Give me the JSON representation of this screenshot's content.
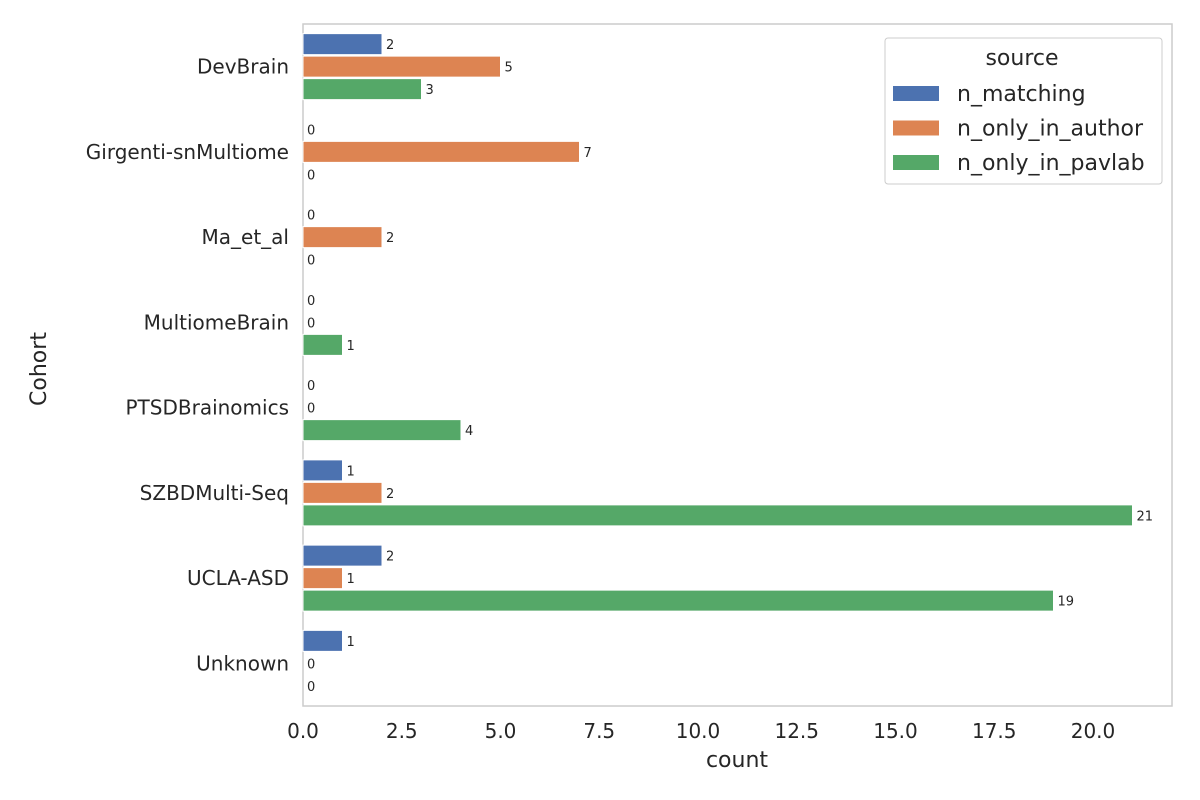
{
  "chart_data": {
    "type": "bar",
    "orientation": "horizontal",
    "xlabel": "count",
    "ylabel": "Cohort",
    "xlim": [
      0,
      22
    ],
    "xticks": [
      "0.0",
      "2.5",
      "5.0",
      "7.5",
      "10.0",
      "12.5",
      "15.0",
      "17.5",
      "20.0"
    ],
    "grid": false,
    "legend": {
      "title": "source",
      "placement": "top-right"
    },
    "categories": [
      "DevBrain",
      "Girgenti-snMultiome",
      "Ma_et_al",
      "MultiomeBrain",
      "PTSDBrainomics",
      "SZBDMulti-Seq",
      "UCLA-ASD",
      "Unknown"
    ],
    "series": [
      {
        "name": "n_matching",
        "color": "#4c72b0",
        "values": [
          2,
          0,
          0,
          0,
          0,
          1,
          2,
          1
        ]
      },
      {
        "name": "n_only_in_author",
        "color": "#dd8452",
        "values": [
          5,
          7,
          2,
          0,
          0,
          2,
          1,
          0
        ]
      },
      {
        "name": "n_only_in_pavlab",
        "color": "#55a868",
        "values": [
          3,
          0,
          0,
          1,
          4,
          21,
          19,
          0
        ]
      }
    ]
  }
}
